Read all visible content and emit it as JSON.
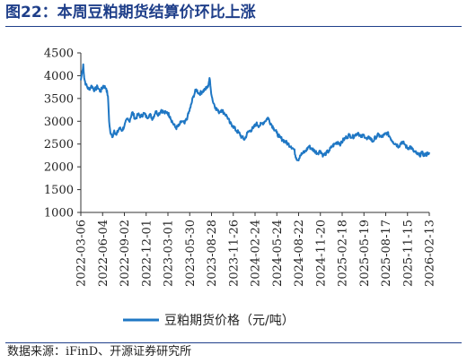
{
  "header": {
    "title": "图22：本周豆粕期货结算价环比上涨"
  },
  "footer": {
    "source": "数据来源：iFinD、开源证券研究所"
  },
  "colors": {
    "series": "#1f77c4",
    "title": "#1f3f8a",
    "axis": "#333333"
  },
  "chart_data": {
    "type": "line",
    "ylim": [
      1000,
      4500
    ],
    "yticks": [
      1000,
      1500,
      2000,
      2500,
      3000,
      3500,
      4000,
      4500
    ],
    "xlim": [
      "2022-03-06",
      "2026-02-13"
    ],
    "xticks": [
      "2022-03-06",
      "2022-06-04",
      "2022-09-02",
      "2022-12-01",
      "2023-03-01",
      "2023-05-30",
      "2023-08-28",
      "2023-11-26",
      "2024-02-24",
      "2024-05-24",
      "2024-08-22",
      "2024-11-20",
      "2025-02-18",
      "2025-05-19",
      "2025-08-17",
      "2025-11-15",
      "2026-02-13"
    ],
    "grid": false,
    "legend": "bottom",
    "series": [
      {
        "name": "豆粕期货价格（元/吨）",
        "points": [
          [
            "2022-03-06",
            3900
          ],
          [
            "2022-03-12",
            4100
          ],
          [
            "2022-03-16",
            4250
          ],
          [
            "2022-03-20",
            3950
          ],
          [
            "2022-03-27",
            3800
          ],
          [
            "2022-04-08",
            3700
          ],
          [
            "2022-04-20",
            3780
          ],
          [
            "2022-05-02",
            3680
          ],
          [
            "2022-05-14",
            3760
          ],
          [
            "2022-05-26",
            3650
          ],
          [
            "2022-06-07",
            3780
          ],
          [
            "2022-06-19",
            3720
          ],
          [
            "2022-06-26",
            3550
          ],
          [
            "2022-07-01",
            3000
          ],
          [
            "2022-07-06",
            2750
          ],
          [
            "2022-07-14",
            2650
          ],
          [
            "2022-07-22",
            2800
          ],
          [
            "2022-07-31",
            2700
          ],
          [
            "2022-08-12",
            2850
          ],
          [
            "2022-08-24",
            2800
          ],
          [
            "2022-09-02",
            2900
          ],
          [
            "2022-09-14",
            3050
          ],
          [
            "2022-09-22",
            3000
          ],
          [
            "2022-10-05",
            3200
          ],
          [
            "2022-10-17",
            3050
          ],
          [
            "2022-10-29",
            3150
          ],
          [
            "2022-11-10",
            3100
          ],
          [
            "2022-11-22",
            3180
          ],
          [
            "2022-12-04",
            3080
          ],
          [
            "2022-12-16",
            3150
          ],
          [
            "2022-12-28",
            3050
          ],
          [
            "2023-01-09",
            3220
          ],
          [
            "2023-01-21",
            3150
          ],
          [
            "2023-02-02",
            3250
          ],
          [
            "2023-02-14",
            3180
          ],
          [
            "2023-02-26",
            3200
          ],
          [
            "2023-03-10",
            3100
          ],
          [
            "2023-03-22",
            2950
          ],
          [
            "2023-04-03",
            2850
          ],
          [
            "2023-04-15",
            2900
          ],
          [
            "2023-04-27",
            3000
          ],
          [
            "2023-05-09",
            2950
          ],
          [
            "2023-05-21",
            3100
          ],
          [
            "2023-06-02",
            3300
          ],
          [
            "2023-06-14",
            3550
          ],
          [
            "2023-06-26",
            3700
          ],
          [
            "2023-07-08",
            3600
          ],
          [
            "2023-07-20",
            3650
          ],
          [
            "2023-08-01",
            3700
          ],
          [
            "2023-08-13",
            3750
          ],
          [
            "2023-08-20",
            3950
          ],
          [
            "2023-08-25",
            3700
          ],
          [
            "2023-09-02",
            3450
          ],
          [
            "2023-09-14",
            3300
          ],
          [
            "2023-09-26",
            3200
          ],
          [
            "2023-10-08",
            3250
          ],
          [
            "2023-10-20",
            3180
          ],
          [
            "2023-11-01",
            3100
          ],
          [
            "2023-11-13",
            2950
          ],
          [
            "2023-11-25",
            2900
          ],
          [
            "2023-12-07",
            2800
          ],
          [
            "2023-12-19",
            2750
          ],
          [
            "2023-12-31",
            2650
          ],
          [
            "2024-01-12",
            2600
          ],
          [
            "2024-01-24",
            2750
          ],
          [
            "2024-02-05",
            2800
          ],
          [
            "2024-02-17",
            2850
          ],
          [
            "2024-02-29",
            2950
          ],
          [
            "2024-03-12",
            2900
          ],
          [
            "2024-03-24",
            2950
          ],
          [
            "2024-04-05",
            3000
          ],
          [
            "2024-04-17",
            3080
          ],
          [
            "2024-04-29",
            2950
          ],
          [
            "2024-05-11",
            2850
          ],
          [
            "2024-05-23",
            2750
          ],
          [
            "2024-06-04",
            2650
          ],
          [
            "2024-06-16",
            2600
          ],
          [
            "2024-06-28",
            2550
          ],
          [
            "2024-07-10",
            2500
          ],
          [
            "2024-07-22",
            2450
          ],
          [
            "2024-08-03",
            2380
          ],
          [
            "2024-08-12",
            2200
          ],
          [
            "2024-08-20",
            2150
          ],
          [
            "2024-08-28",
            2250
          ],
          [
            "2024-09-09",
            2300
          ],
          [
            "2024-09-21",
            2350
          ],
          [
            "2024-10-03",
            2450
          ],
          [
            "2024-10-15",
            2400
          ],
          [
            "2024-10-27",
            2350
          ],
          [
            "2024-11-08",
            2300
          ],
          [
            "2024-11-20",
            2350
          ],
          [
            "2024-12-02",
            2250
          ],
          [
            "2024-12-14",
            2300
          ],
          [
            "2024-12-26",
            2350
          ],
          [
            "2025-01-07",
            2450
          ],
          [
            "2025-01-19",
            2500
          ],
          [
            "2025-01-31",
            2550
          ],
          [
            "2025-02-12",
            2500
          ],
          [
            "2025-02-24",
            2600
          ],
          [
            "2025-03-08",
            2650
          ],
          [
            "2025-03-20",
            2700
          ],
          [
            "2025-04-01",
            2650
          ],
          [
            "2025-04-13",
            2700
          ],
          [
            "2025-04-25",
            2750
          ],
          [
            "2025-05-07",
            2650
          ],
          [
            "2025-05-19",
            2700
          ],
          [
            "2025-05-31",
            2600
          ],
          [
            "2025-06-12",
            2650
          ],
          [
            "2025-06-24",
            2550
          ],
          [
            "2025-07-06",
            2650
          ],
          [
            "2025-07-18",
            2700
          ],
          [
            "2025-07-30",
            2650
          ],
          [
            "2025-08-11",
            2700
          ],
          [
            "2025-08-23",
            2750
          ],
          [
            "2025-09-04",
            2650
          ],
          [
            "2025-09-16",
            2550
          ],
          [
            "2025-09-28",
            2500
          ],
          [
            "2025-10-10",
            2450
          ],
          [
            "2025-10-22",
            2550
          ],
          [
            "2025-11-03",
            2500
          ],
          [
            "2025-11-15",
            2400
          ],
          [
            "2025-11-27",
            2450
          ],
          [
            "2025-12-09",
            2350
          ],
          [
            "2025-12-21",
            2300
          ],
          [
            "2026-01-02",
            2250
          ],
          [
            "2026-01-14",
            2300
          ],
          [
            "2026-01-26",
            2250
          ],
          [
            "2026-02-07",
            2300
          ],
          [
            "2026-02-13",
            2320
          ]
        ]
      }
    ]
  }
}
